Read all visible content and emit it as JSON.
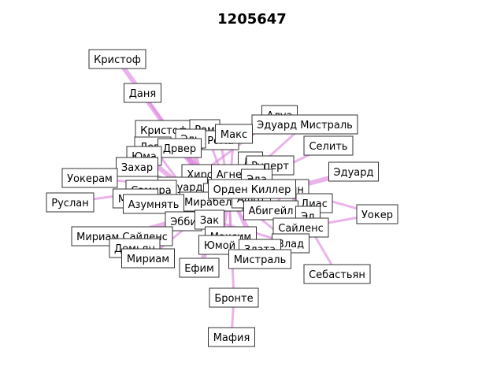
{
  "title": "1205647",
  "colors": {
    "edge": "#e08be0",
    "node_border": "#333333",
    "node_fill": "#ffffff"
  },
  "labels": [
    "Кристоф",
    "Даня",
    "Алуа",
    "Эдуард Мистраль",
    "Кристоф",
    "Ром",
    "Рома",
    "Макс",
    "Эль",
    "Лева",
    "Дрвер",
    "Селить",
    "Юма",
    "Захар",
    "Де",
    "Руперт",
    "Эдуард",
    "Уокерам",
    "Хиро",
    "Агнесса",
    "Эда",
    "Эдуард",
    "Самира",
    "Кевин",
    "Мерлин",
    "Мирабель",
    "Мэнди",
    "Ашот",
    "Руслан",
    "Азумнять",
    "Диас",
    "Абигейл",
    "Эбби",
    "Зак",
    "Эд",
    "Уокер",
    "Сайленс",
    "Мириам Сайленс",
    "Максим",
    "Влад",
    "Демьян",
    "Юмой",
    "Злата",
    "Мириам",
    "Мистраль",
    "Ефим",
    "Себастьян",
    "Бронте",
    "Мафия",
    "Орден Киллер"
  ]
}
